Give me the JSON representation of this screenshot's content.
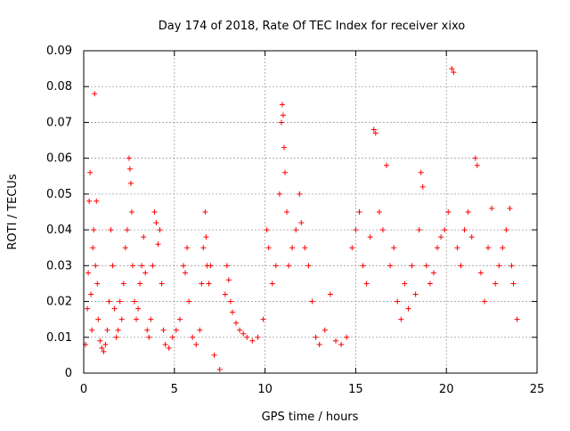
{
  "chart_data": {
    "type": "scatter",
    "title": "Day 174 of 2018, Rate Of TEC Index for receiver xixo",
    "xlabel": "GPS time / hours",
    "ylabel": "ROTI / TECUs",
    "xlim": [
      0,
      25
    ],
    "ylim": [
      0,
      0.09
    ],
    "xticks": [
      "0",
      "5",
      "10",
      "15",
      "20",
      "25"
    ],
    "yticks": [
      "0",
      "0.01",
      "0.02",
      "0.03",
      "0.04",
      "0.05",
      "0.06",
      "0.07",
      "0.08",
      "0.09"
    ],
    "grid": true,
    "marker": "+",
    "color": "#ff0000",
    "series": [
      {
        "name": "ROTI",
        "points": [
          [
            0.1,
            0.008
          ],
          [
            0.2,
            0.018
          ],
          [
            0.25,
            0.028
          ],
          [
            0.3,
            0.048
          ],
          [
            0.35,
            0.056
          ],
          [
            0.4,
            0.022
          ],
          [
            0.45,
            0.012
          ],
          [
            0.5,
            0.035
          ],
          [
            0.55,
            0.04
          ],
          [
            0.6,
            0.078
          ],
          [
            0.65,
            0.03
          ],
          [
            0.7,
            0.048
          ],
          [
            0.75,
            0.025
          ],
          [
            0.8,
            0.015
          ],
          [
            0.9,
            0.009
          ],
          [
            1.0,
            0.007
          ],
          [
            1.1,
            0.006
          ],
          [
            1.2,
            0.008
          ],
          [
            1.3,
            0.012
          ],
          [
            1.4,
            0.02
          ],
          [
            1.5,
            0.04
          ],
          [
            1.6,
            0.03
          ],
          [
            1.7,
            0.018
          ],
          [
            1.8,
            0.01
          ],
          [
            1.9,
            0.012
          ],
          [
            2.0,
            0.02
          ],
          [
            2.1,
            0.015
          ],
          [
            2.2,
            0.025
          ],
          [
            2.3,
            0.035
          ],
          [
            2.4,
            0.04
          ],
          [
            2.5,
            0.06
          ],
          [
            2.55,
            0.057
          ],
          [
            2.6,
            0.053
          ],
          [
            2.65,
            0.045
          ],
          [
            2.7,
            0.03
          ],
          [
            2.8,
            0.02
          ],
          [
            2.9,
            0.015
          ],
          [
            3.0,
            0.018
          ],
          [
            3.1,
            0.025
          ],
          [
            3.2,
            0.03
          ],
          [
            3.3,
            0.038
          ],
          [
            3.4,
            0.028
          ],
          [
            3.5,
            0.012
          ],
          [
            3.6,
            0.01
          ],
          [
            3.7,
            0.015
          ],
          [
            3.8,
            0.03
          ],
          [
            3.9,
            0.045
          ],
          [
            4.0,
            0.042
          ],
          [
            4.1,
            0.036
          ],
          [
            4.2,
            0.04
          ],
          [
            4.3,
            0.025
          ],
          [
            4.4,
            0.012
          ],
          [
            4.5,
            0.008
          ],
          [
            4.7,
            0.007
          ],
          [
            4.9,
            0.01
          ],
          [
            5.1,
            0.012
          ],
          [
            5.3,
            0.015
          ],
          [
            5.5,
            0.03
          ],
          [
            5.6,
            0.028
          ],
          [
            5.7,
            0.035
          ],
          [
            5.8,
            0.02
          ],
          [
            6.0,
            0.01
          ],
          [
            6.2,
            0.008
          ],
          [
            6.4,
            0.012
          ],
          [
            6.5,
            0.025
          ],
          [
            6.6,
            0.035
          ],
          [
            6.7,
            0.045
          ],
          [
            6.75,
            0.038
          ],
          [
            6.8,
            0.03
          ],
          [
            6.9,
            0.025
          ],
          [
            7.0,
            0.03
          ],
          [
            7.2,
            0.005
          ],
          [
            7.5,
            0.001
          ],
          [
            7.8,
            0.022
          ],
          [
            7.9,
            0.03
          ],
          [
            8.0,
            0.026
          ],
          [
            8.1,
            0.02
          ],
          [
            8.2,
            0.017
          ],
          [
            8.4,
            0.014
          ],
          [
            8.6,
            0.012
          ],
          [
            8.8,
            0.011
          ],
          [
            9.0,
            0.01
          ],
          [
            9.3,
            0.009
          ],
          [
            9.6,
            0.01
          ],
          [
            9.9,
            0.015
          ],
          [
            10.1,
            0.04
          ],
          [
            10.2,
            0.035
          ],
          [
            10.4,
            0.025
          ],
          [
            10.6,
            0.03
          ],
          [
            10.8,
            0.05
          ],
          [
            10.9,
            0.07
          ],
          [
            10.95,
            0.075
          ],
          [
            11.0,
            0.072
          ],
          [
            11.05,
            0.063
          ],
          [
            11.1,
            0.056
          ],
          [
            11.2,
            0.045
          ],
          [
            11.3,
            0.03
          ],
          [
            11.5,
            0.035
          ],
          [
            11.7,
            0.04
          ],
          [
            11.9,
            0.05
          ],
          [
            12.0,
            0.042
          ],
          [
            12.2,
            0.035
          ],
          [
            12.4,
            0.03
          ],
          [
            12.6,
            0.02
          ],
          [
            12.8,
            0.01
          ],
          [
            13.0,
            0.008
          ],
          [
            13.3,
            0.012
          ],
          [
            13.6,
            0.022
          ],
          [
            13.9,
            0.009
          ],
          [
            14.2,
            0.008
          ],
          [
            14.5,
            0.01
          ],
          [
            14.8,
            0.035
          ],
          [
            15.0,
            0.04
          ],
          [
            15.2,
            0.045
          ],
          [
            15.4,
            0.03
          ],
          [
            15.6,
            0.025
          ],
          [
            15.8,
            0.038
          ],
          [
            16.0,
            0.068
          ],
          [
            16.1,
            0.067
          ],
          [
            16.3,
            0.045
          ],
          [
            16.5,
            0.04
          ],
          [
            16.7,
            0.058
          ],
          [
            16.9,
            0.03
          ],
          [
            17.1,
            0.035
          ],
          [
            17.3,
            0.02
          ],
          [
            17.5,
            0.015
          ],
          [
            17.7,
            0.025
          ],
          [
            17.9,
            0.018
          ],
          [
            18.1,
            0.03
          ],
          [
            18.3,
            0.022
          ],
          [
            18.5,
            0.04
          ],
          [
            18.6,
            0.056
          ],
          [
            18.7,
            0.052
          ],
          [
            18.9,
            0.03
          ],
          [
            19.1,
            0.025
          ],
          [
            19.3,
            0.028
          ],
          [
            19.5,
            0.035
          ],
          [
            19.7,
            0.038
          ],
          [
            19.9,
            0.04
          ],
          [
            20.1,
            0.045
          ],
          [
            20.3,
            0.085
          ],
          [
            20.4,
            0.084
          ],
          [
            20.6,
            0.035
          ],
          [
            20.8,
            0.03
          ],
          [
            21.0,
            0.04
          ],
          [
            21.2,
            0.045
          ],
          [
            21.4,
            0.038
          ],
          [
            21.6,
            0.06
          ],
          [
            21.7,
            0.058
          ],
          [
            21.9,
            0.028
          ],
          [
            22.1,
            0.02
          ],
          [
            22.3,
            0.035
          ],
          [
            22.5,
            0.046
          ],
          [
            22.7,
            0.025
          ],
          [
            22.9,
            0.03
          ],
          [
            23.1,
            0.035
          ],
          [
            23.3,
            0.04
          ],
          [
            23.5,
            0.046
          ],
          [
            23.6,
            0.03
          ],
          [
            23.7,
            0.025
          ],
          [
            23.9,
            0.015
          ]
        ]
      }
    ]
  }
}
